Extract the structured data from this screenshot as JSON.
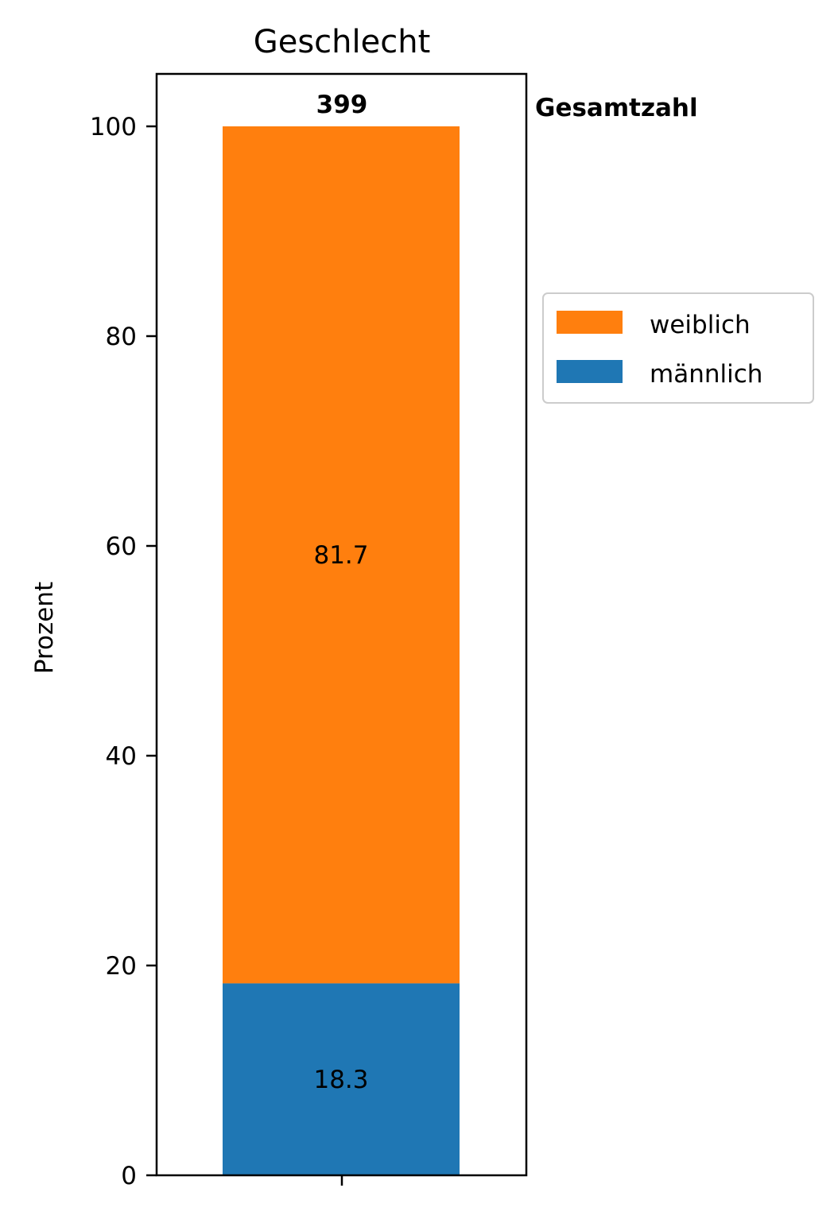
{
  "chart_data": {
    "type": "bar",
    "stacked": true,
    "title": "Geschlecht",
    "xlabel": "",
    "ylabel": "Prozent",
    "ylim": [
      0,
      105
    ],
    "yticks": [
      0,
      20,
      40,
      60,
      80,
      100
    ],
    "categories": [
      ""
    ],
    "series": [
      {
        "name": "männlich",
        "values": [
          18.3
        ],
        "color": "#1f77b4"
      },
      {
        "name": "weiblich",
        "values": [
          81.7
        ],
        "color": "#ff7f0e"
      }
    ],
    "data_labels": [
      "18.3",
      "81.7"
    ],
    "total": {
      "value": "399",
      "label": "Gesamtzahl"
    },
    "legend": {
      "placement": "right",
      "order": [
        "weiblich",
        "männlich"
      ]
    },
    "grid": false
  }
}
